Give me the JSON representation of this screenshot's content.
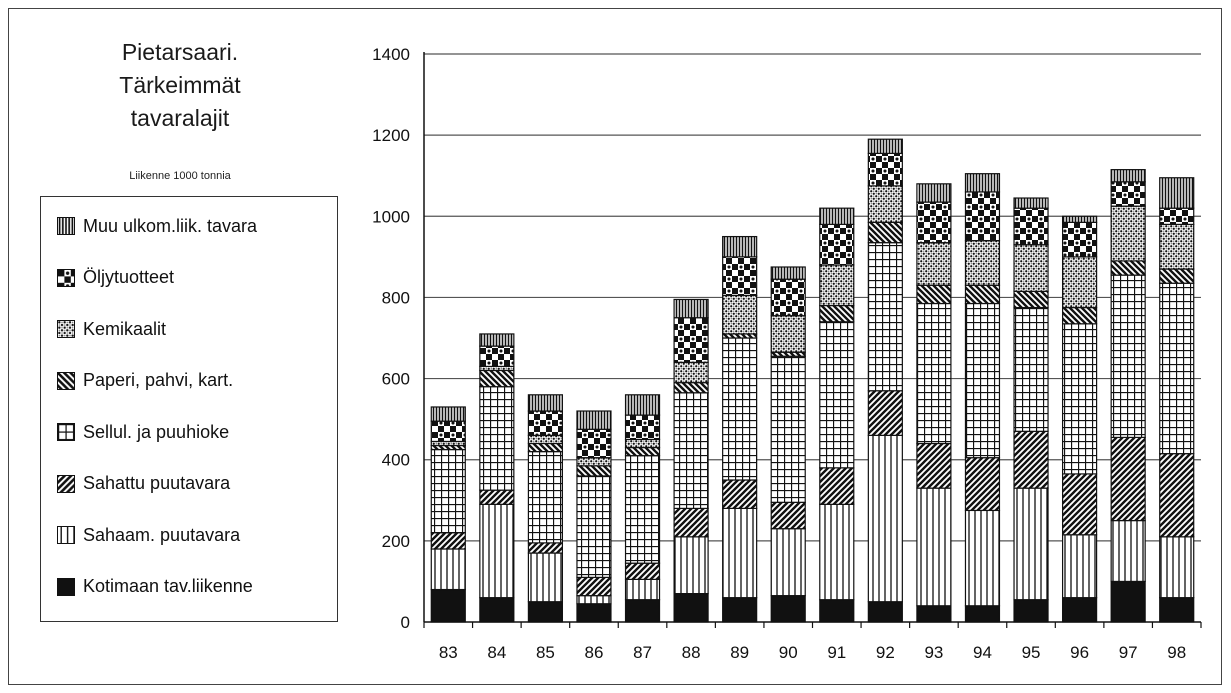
{
  "chart_data": {
    "type": "bar",
    "stacked": true,
    "title": "Pietarsaari. Tärkeimmät tavaralajit",
    "title_lines": [
      "Pietarsaari.",
      "Tärkeimmät",
      "tavaralajit"
    ],
    "subtitle": "Liikenne 1000 tonnia",
    "xlabel": "",
    "ylabel": "",
    "ylim": [
      0,
      1400
    ],
    "yticks": [
      0,
      200,
      400,
      600,
      800,
      1000,
      1200,
      1400
    ],
    "grid": true,
    "legend_position": "left",
    "categories": [
      "83",
      "84",
      "85",
      "86",
      "87",
      "88",
      "89",
      "90",
      "91",
      "92",
      "93",
      "94",
      "95",
      "96",
      "97",
      "98"
    ],
    "series": [
      {
        "name": "Kotimaan tav.liikenne",
        "pattern": "solid",
        "values": [
          80,
          60,
          50,
          45,
          55,
          70,
          60,
          65,
          55,
          50,
          40,
          40,
          55,
          60,
          100,
          60
        ]
      },
      {
        "name": "Sahaam. puutavara",
        "pattern": "vertical",
        "values": [
          100,
          230,
          120,
          20,
          50,
          140,
          220,
          165,
          235,
          410,
          290,
          235,
          275,
          155,
          150,
          150
        ]
      },
      {
        "name": "Sahattu puutavara",
        "pattern": "diagonal",
        "values": [
          40,
          35,
          25,
          45,
          40,
          70,
          70,
          65,
          90,
          110,
          110,
          130,
          140,
          150,
          205,
          205
        ]
      },
      {
        "name": "Sellul. ja puuhioke",
        "pattern": "grid",
        "values": [
          205,
          255,
          225,
          250,
          265,
          285,
          350,
          360,
          360,
          365,
          345,
          380,
          305,
          370,
          400,
          420
        ]
      },
      {
        "name": "Paperi, pahvi, kart.",
        "pattern": "backdiagonal",
        "values": [
          10,
          40,
          20,
          25,
          20,
          25,
          10,
          10,
          40,
          50,
          45,
          45,
          40,
          40,
          35,
          35
        ]
      },
      {
        "name": "Kemikaalit",
        "pattern": "dots",
        "values": [
          10,
          10,
          20,
          20,
          20,
          50,
          95,
          90,
          100,
          90,
          105,
          110,
          115,
          125,
          135,
          110
        ]
      },
      {
        "name": "Öljytuotteet",
        "pattern": "checker",
        "values": [
          50,
          50,
          60,
          70,
          60,
          110,
          95,
          90,
          100,
          80,
          100,
          120,
          90,
          85,
          60,
          40
        ]
      },
      {
        "name": "Muu ulkom.liik. tavara",
        "pattern": "vertical-dense",
        "values": [
          35,
          30,
          40,
          45,
          50,
          45,
          50,
          30,
          40,
          35,
          45,
          45,
          25,
          15,
          30,
          75
        ]
      }
    ]
  },
  "colors": {
    "ink": "#111111",
    "grid": "#555555",
    "frame": "#444444"
  }
}
